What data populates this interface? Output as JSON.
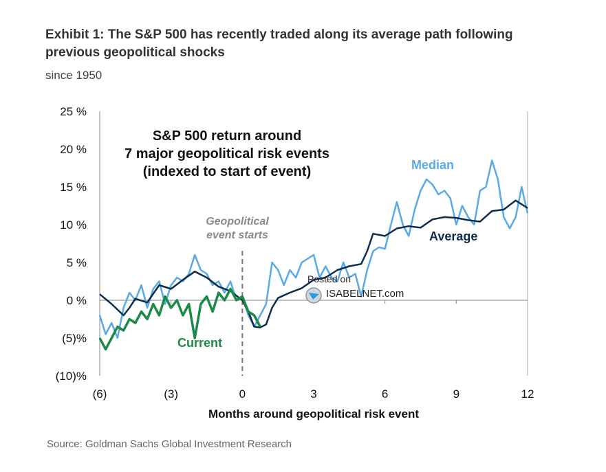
{
  "title_line1": "Exhibit 1: The S&P 500 has recently traded along its average path following",
  "title_line2": "previous geopolitical shocks",
  "subtitle": "since 1950",
  "source": "Source: Goldman Sachs Global Investment Research",
  "watermark": {
    "line1": "Posted on",
    "line2": "ISABELNET.com"
  },
  "chart_data": {
    "type": "line",
    "title": [
      "S&P 500 return around",
      "7 major geopolitical risk events",
      "(indexed to start of event)"
    ],
    "xlabel": "Months around geopolitical risk event",
    "ylabel": "",
    "xlim": [
      -6,
      12
    ],
    "ylim": [
      -10,
      25
    ],
    "x_ticks": [
      -6,
      -3,
      0,
      3,
      6,
      9,
      12
    ],
    "x_tick_labels": [
      "(6)",
      "(3)",
      "0",
      "3",
      "6",
      "9",
      "12"
    ],
    "y_ticks": [
      25,
      20,
      15,
      10,
      5,
      0,
      -5,
      -10
    ],
    "y_tick_labels": [
      "25 %",
      "20 %",
      "15 %",
      "10 %",
      "5 %",
      "0 %",
      "(5)%",
      "(10)%"
    ],
    "event_marker": {
      "x": 0,
      "label": [
        "Geopolitical",
        "event starts"
      ]
    },
    "series": [
      {
        "name": "Median",
        "color": "#5aaae2",
        "x": [
          -6,
          -5.75,
          -5.5,
          -5.25,
          -5,
          -4.75,
          -4.5,
          -4.25,
          -4,
          -3.75,
          -3.5,
          -3.25,
          -3,
          -2.75,
          -2.5,
          -2.25,
          -2,
          -1.75,
          -1.5,
          -1.25,
          -1,
          -0.75,
          -0.5,
          -0.25,
          0,
          0.25,
          0.5,
          0.75,
          1,
          1.25,
          1.5,
          1.75,
          2,
          2.25,
          2.5,
          2.75,
          3,
          3.25,
          3.5,
          3.75,
          4,
          4.25,
          4.5,
          4.75,
          5,
          5.25,
          5.5,
          5.75,
          6,
          6.25,
          6.5,
          6.75,
          7,
          7.25,
          7.5,
          7.75,
          8,
          8.25,
          8.5,
          8.75,
          9,
          9.25,
          9.5,
          9.75,
          10,
          10.25,
          10.5,
          10.75,
          11,
          11.25,
          11.5,
          11.75,
          12
        ],
        "values": [
          -2,
          -4.5,
          -3,
          -5,
          -1,
          1,
          0,
          2,
          -1,
          1.5,
          2.5,
          -0.5,
          2,
          3,
          2.5,
          3.5,
          6,
          4,
          3.5,
          2,
          2.5,
          1,
          2.5,
          0,
          0.5,
          -2,
          -3.5,
          -2,
          -0.5,
          5,
          4,
          2,
          4,
          3,
          5,
          5.5,
          6,
          3,
          4.5,
          3,
          2.5,
          5,
          3,
          3.5,
          0.5,
          4,
          6.5,
          7,
          6.8,
          10,
          13,
          10,
          8.5,
          12,
          14.5,
          16,
          15.3,
          14,
          14.5,
          13.5,
          10,
          12.5,
          11,
          10,
          14.5,
          15,
          18.5,
          16,
          11,
          9.5,
          11,
          15,
          11.5
        ]
      },
      {
        "name": "Average",
        "color": "#0d2d4d",
        "x": [
          -6,
          -5.5,
          -5,
          -4.75,
          -4.5,
          -4,
          -3.5,
          -3,
          -2.5,
          -2,
          -1.5,
          -1,
          -0.5,
          0,
          0.25,
          0.5,
          0.75,
          1,
          1.25,
          1.5,
          2,
          2.5,
          3,
          3.5,
          4,
          4.5,
          5,
          5.25,
          5.5,
          6,
          6.5,
          7,
          7.5,
          8,
          8.5,
          9,
          9.5,
          10,
          10.5,
          11,
          11.5,
          12
        ],
        "values": [
          0.8,
          -0.5,
          -2,
          -1,
          0.2,
          -0.3,
          2,
          1.5,
          2.7,
          3.8,
          3,
          1.8,
          1.2,
          0,
          -1.5,
          -3.5,
          -3.6,
          -3.2,
          -1,
          0.3,
          1,
          1.6,
          2.7,
          3,
          4,
          4.5,
          4.8,
          6.5,
          8.8,
          8.5,
          9.5,
          9.8,
          9.6,
          10.7,
          11,
          10.9,
          10.6,
          10.4,
          11.8,
          12,
          13.2,
          12.2
        ]
      },
      {
        "name": "Current",
        "color": "#1b8a47",
        "x": [
          -6,
          -5.75,
          -5.5,
          -5.25,
          -5,
          -4.75,
          -4.5,
          -4.25,
          -4,
          -3.75,
          -3.5,
          -3.25,
          -3,
          -2.75,
          -2.5,
          -2.25,
          -2,
          -1.75,
          -1.5,
          -1.25,
          -1,
          -0.75,
          -0.5,
          -0.25,
          0,
          0.25,
          0.5,
          0.75
        ],
        "values": [
          -5,
          -6.5,
          -5,
          -3.5,
          -4,
          -2.5,
          -3,
          -1.5,
          -2.5,
          -0.5,
          -2,
          0.5,
          -1,
          0,
          -2,
          -0.5,
          -5,
          -0.5,
          0.5,
          -1.5,
          1,
          0,
          1.5,
          0,
          0.5,
          -1.5,
          -2,
          -3.5
        ]
      }
    ],
    "series_labels": {
      "Median": "Median",
      "Average": "Average",
      "Current": "Current"
    },
    "grid": false,
    "legend": "inline labels"
  }
}
